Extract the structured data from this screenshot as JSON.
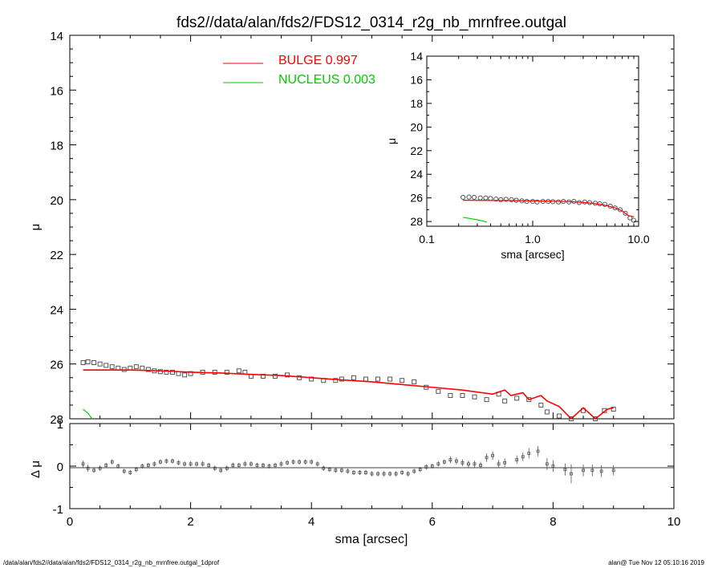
{
  "title": "fds2//data/alan/fds2/FDS12_0314_r2g_nb_mrnfree.outgal",
  "footer": {
    "left": "/data/alan/fds2//data/alan/fds2/FDS12_0314_r2g_nb_mrnfree.outgal_1dprof",
    "right": "alan@  Tue Nov 12 05:10:16 2019"
  },
  "colors": {
    "bulge": "#ff0000",
    "nucleus": "#00cc00",
    "data": "#555555",
    "axes": "#000000"
  },
  "chart_data": [
    {
      "panel": "main",
      "type": "scatter",
      "xlabel": "sma [arcsec]",
      "ylabel": "μ",
      "xlim": [
        0,
        10
      ],
      "ylim": [
        28,
        14
      ],
      "x_ticks": [
        "0",
        "2",
        "4",
        "6",
        "8",
        "10"
      ],
      "y_ticks": [
        "14",
        "16",
        "18",
        "20",
        "22",
        "24",
        "26",
        "28"
      ],
      "legend": [
        {
          "label": "BULGE  0.997",
          "color": "#ff0000"
        },
        {
          "label": "NUCLEUS  0.003",
          "color": "#00cc00"
        }
      ],
      "series": [
        {
          "name": "data",
          "style": "squares",
          "x": [
            0.22,
            0.3,
            0.4,
            0.5,
            0.6,
            0.7,
            0.8,
            0.9,
            1.0,
            1.1,
            1.2,
            1.3,
            1.4,
            1.5,
            1.6,
            1.7,
            1.8,
            1.9,
            2.0,
            2.2,
            2.4,
            2.6,
            2.8,
            2.9,
            3.0,
            3.2,
            3.4,
            3.6,
            3.8,
            4.0,
            4.2,
            4.4,
            4.5,
            4.7,
            4.9,
            5.1,
            5.3,
            5.5,
            5.7,
            5.9,
            6.1,
            6.3,
            6.5,
            6.7,
            6.9,
            7.1,
            7.2,
            7.4,
            7.6,
            7.8,
            7.9,
            8.1,
            8.3,
            8.5,
            8.7,
            8.85,
            9.0
          ],
          "y": [
            25.95,
            25.92,
            25.95,
            26.0,
            26.05,
            26.1,
            26.15,
            26.2,
            26.15,
            26.1,
            26.15,
            26.2,
            26.25,
            26.28,
            26.3,
            26.3,
            26.35,
            26.4,
            26.35,
            26.3,
            26.3,
            26.3,
            26.25,
            26.3,
            26.45,
            26.45,
            26.45,
            26.4,
            26.5,
            26.55,
            26.6,
            26.6,
            26.55,
            26.5,
            26.55,
            26.55,
            26.55,
            26.6,
            26.65,
            26.85,
            27.0,
            27.15,
            27.15,
            27.2,
            27.3,
            27.1,
            27.35,
            27.25,
            27.3,
            27.5,
            27.75,
            27.9,
            28.0,
            27.7,
            28.0,
            27.7,
            27.65
          ]
        },
        {
          "name": "BULGE",
          "style": "line",
          "x": [
            0.22,
            0.5,
            1.0,
            1.5,
            2.0,
            2.5,
            3.0,
            3.5,
            4.0,
            4.5,
            5.0,
            5.5,
            6.0,
            6.5,
            7.0,
            7.2,
            7.3,
            7.5,
            7.6,
            7.8,
            7.9,
            8.1,
            8.3,
            8.5,
            8.7,
            8.9,
            9.0
          ],
          "y": [
            26.22,
            26.22,
            26.22,
            26.25,
            26.3,
            26.33,
            26.38,
            26.42,
            26.5,
            26.58,
            26.65,
            26.75,
            26.85,
            26.95,
            27.1,
            26.95,
            27.15,
            27.05,
            27.3,
            27.15,
            27.35,
            27.55,
            28.0,
            27.6,
            28.0,
            27.65,
            27.6
          ]
        },
        {
          "name": "NUCLEUS",
          "style": "line",
          "x": [
            0.22,
            0.3,
            0.37
          ],
          "y": [
            27.65,
            27.8,
            28.0
          ]
        }
      ]
    },
    {
      "panel": "residual",
      "type": "scatter",
      "xlabel": "",
      "ylabel": "Δ μ",
      "xlim": [
        0,
        10
      ],
      "ylim": [
        -1,
        1
      ],
      "y_ticks": [
        "-1",
        "0",
        "1"
      ],
      "x": [
        0.22,
        0.3,
        0.4,
        0.5,
        0.6,
        0.7,
        0.8,
        0.9,
        1.0,
        1.1,
        1.2,
        1.3,
        1.4,
        1.5,
        1.6,
        1.7,
        1.8,
        1.9,
        2.0,
        2.1,
        2.2,
        2.3,
        2.4,
        2.5,
        2.6,
        2.7,
        2.8,
        2.9,
        3.0,
        3.1,
        3.2,
        3.3,
        3.4,
        3.5,
        3.6,
        3.7,
        3.8,
        3.9,
        4.0,
        4.1,
        4.2,
        4.3,
        4.4,
        4.5,
        4.6,
        4.7,
        4.8,
        4.9,
        5.0,
        5.1,
        5.2,
        5.3,
        5.4,
        5.5,
        5.6,
        5.7,
        5.8,
        5.9,
        6.0,
        6.1,
        6.2,
        6.3,
        6.4,
        6.5,
        6.6,
        6.7,
        6.8,
        6.9,
        7.0,
        7.1,
        7.2,
        7.4,
        7.5,
        7.6,
        7.75,
        7.9,
        8.0,
        8.2,
        8.3,
        8.5,
        8.65,
        8.8,
        9.0
      ],
      "y": [
        0.05,
        -0.05,
        -0.1,
        -0.05,
        0.02,
        0.1,
        0.0,
        -0.12,
        -0.15,
        -0.08,
        0.0,
        0.02,
        0.05,
        0.1,
        0.12,
        0.12,
        0.08,
        0.05,
        0.05,
        0.05,
        0.05,
        0.02,
        -0.05,
        -0.1,
        -0.05,
        0.02,
        0.02,
        0.05,
        0.05,
        0.02,
        0.02,
        0.0,
        0.02,
        0.05,
        0.08,
        0.1,
        0.1,
        0.1,
        0.1,
        0.05,
        -0.05,
        -0.08,
        -0.1,
        -0.1,
        -0.12,
        -0.15,
        -0.15,
        -0.15,
        -0.18,
        -0.18,
        -0.18,
        -0.18,
        -0.18,
        -0.15,
        -0.18,
        -0.12,
        -0.08,
        -0.02,
        0.0,
        0.05,
        0.1,
        0.15,
        0.12,
        0.08,
        0.05,
        0.05,
        0.02,
        0.2,
        0.25,
        0.05,
        0.08,
        0.15,
        0.22,
        0.3,
        0.35,
        0.05,
        0.0,
        -0.08,
        -0.18,
        -0.1,
        -0.1,
        -0.12,
        -0.1
      ],
      "err": [
        0.08,
        0.08,
        0.06,
        0.06,
        0.06,
        0.06,
        0.06,
        0.06,
        0.06,
        0.06,
        0.06,
        0.06,
        0.06,
        0.06,
        0.06,
        0.06,
        0.06,
        0.06,
        0.06,
        0.06,
        0.06,
        0.06,
        0.06,
        0.06,
        0.06,
        0.06,
        0.06,
        0.06,
        0.06,
        0.06,
        0.06,
        0.06,
        0.06,
        0.06,
        0.06,
        0.06,
        0.06,
        0.06,
        0.06,
        0.06,
        0.06,
        0.06,
        0.06,
        0.06,
        0.06,
        0.06,
        0.06,
        0.06,
        0.06,
        0.06,
        0.06,
        0.06,
        0.06,
        0.06,
        0.06,
        0.06,
        0.06,
        0.06,
        0.06,
        0.06,
        0.06,
        0.08,
        0.08,
        0.08,
        0.08,
        0.08,
        0.08,
        0.1,
        0.1,
        0.1,
        0.1,
        0.1,
        0.1,
        0.12,
        0.12,
        0.14,
        0.14,
        0.14,
        0.22,
        0.14,
        0.14,
        0.14,
        0.12
      ]
    },
    {
      "panel": "inset",
      "type": "scatter",
      "xlabel": "sma [arcsec]",
      "ylabel": "μ",
      "x_scale": "log",
      "xlim": [
        0.1,
        10
      ],
      "ylim": [
        28.4,
        14
      ],
      "x_ticks": [
        "0.1",
        "1.0",
        "10.0"
      ],
      "y_ticks": [
        "14",
        "16",
        "18",
        "20",
        "22",
        "24",
        "26",
        "28"
      ],
      "series": [
        {
          "name": "data",
          "style": "circles",
          "x": [
            0.22,
            0.25,
            0.28,
            0.32,
            0.36,
            0.4,
            0.45,
            0.5,
            0.56,
            0.63,
            0.7,
            0.79,
            0.88,
            1.0,
            1.1,
            1.25,
            1.4,
            1.55,
            1.75,
            1.95,
            2.2,
            2.45,
            2.75,
            3.1,
            3.45,
            3.9,
            4.3,
            4.8,
            5.4,
            6.0,
            6.7,
            7.5,
            8.3,
            9.0
          ],
          "y": [
            25.95,
            25.93,
            25.95,
            26.0,
            26.0,
            26.05,
            26.1,
            26.15,
            26.12,
            26.15,
            26.2,
            26.25,
            26.3,
            26.3,
            26.35,
            26.3,
            26.3,
            26.32,
            26.35,
            26.3,
            26.35,
            26.3,
            26.4,
            26.35,
            26.4,
            26.45,
            26.5,
            26.55,
            26.7,
            26.85,
            27.0,
            27.3,
            27.7,
            27.9
          ]
        },
        {
          "name": "BULGE",
          "style": "line",
          "x": [
            0.22,
            0.5,
            1.0,
            2.0,
            3.0,
            4.0,
            5.0,
            6.0,
            7.0,
            8.0,
            9.0
          ],
          "y": [
            26.2,
            26.22,
            26.25,
            26.3,
            26.38,
            26.5,
            26.65,
            26.85,
            27.1,
            27.5,
            27.6
          ]
        },
        {
          "name": "NUCLEUS",
          "style": "line",
          "x": [
            0.22,
            0.3,
            0.37
          ],
          "y": [
            27.65,
            27.85,
            28.05
          ]
        }
      ]
    }
  ]
}
